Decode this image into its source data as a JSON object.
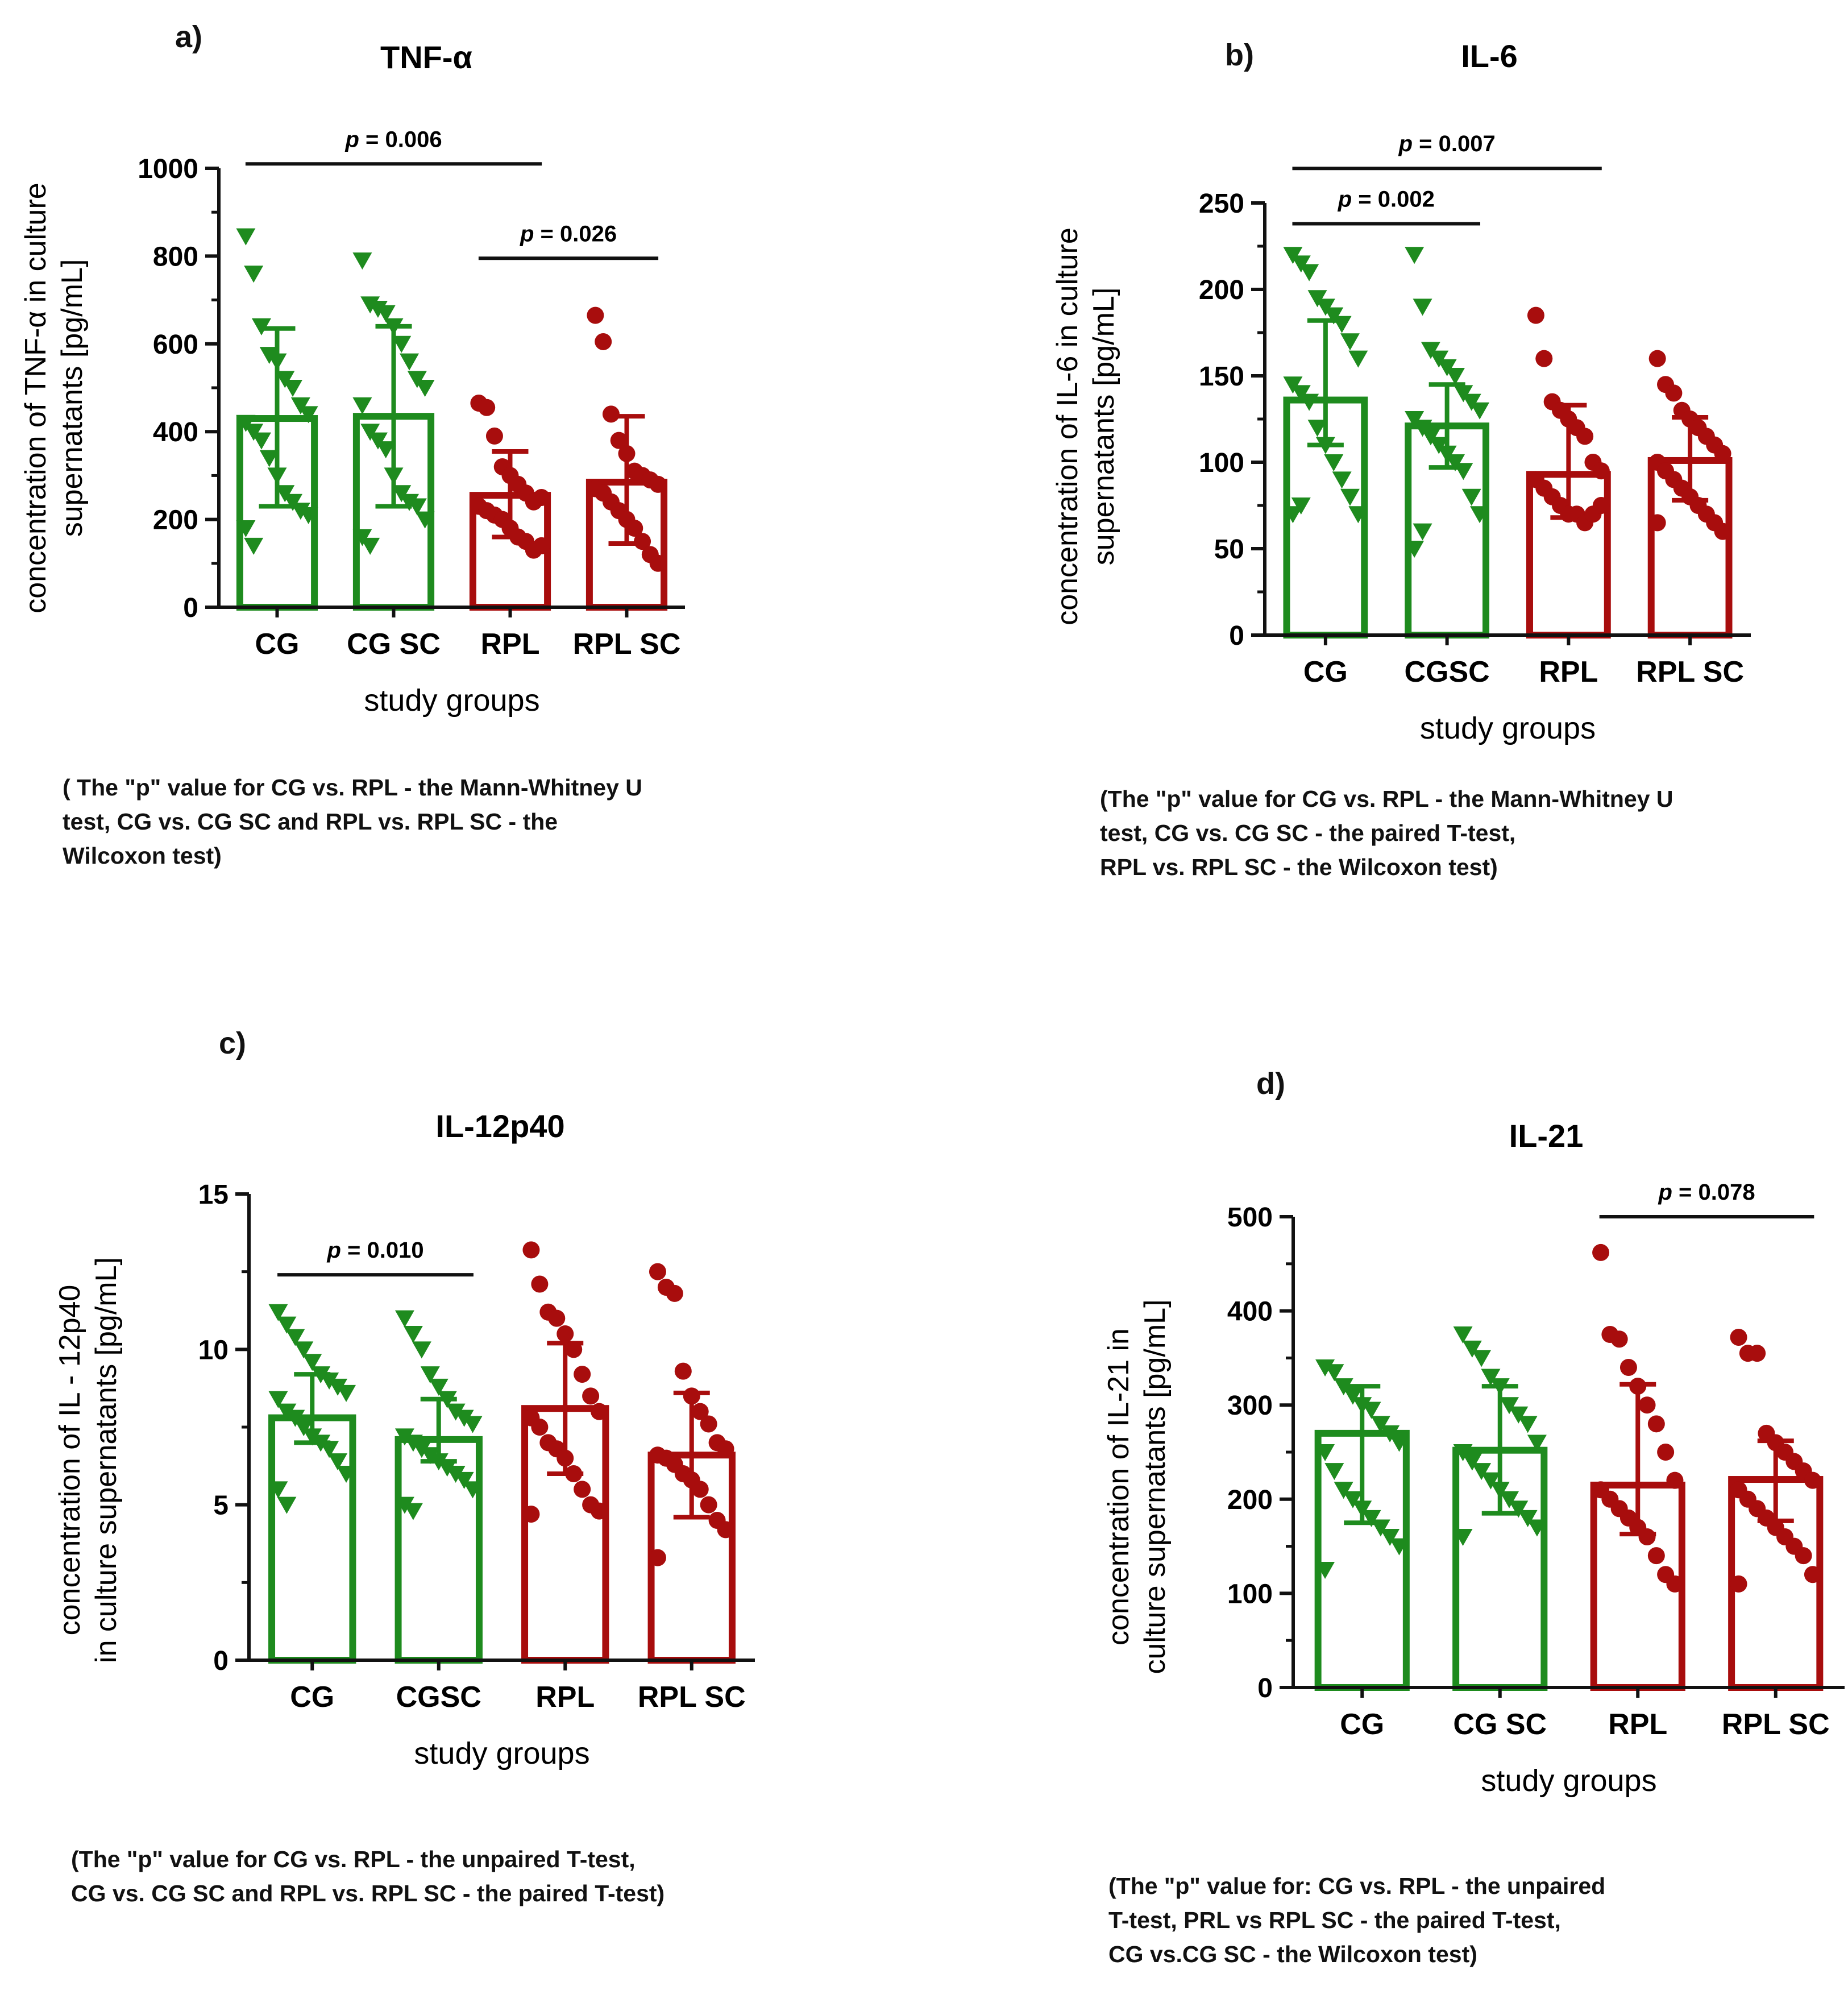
{
  "colors": {
    "cg": "#1e8b1e",
    "rpl": "#a80d0d",
    "axis": "#111111"
  },
  "chart_data": [
    {
      "type": "bar",
      "panel_label": "a)",
      "title": "TNF-α",
      "ylabel_lines": [
        "concentration of TNF-α in culture",
        "supernatants [pg/mL]"
      ],
      "xlabel": "study groups",
      "ylim": [
        0,
        1000
      ],
      "yticks": [
        0,
        200,
        400,
        600,
        800,
        1000
      ],
      "ytick_labels": [
        "0",
        "200",
        "400",
        "600",
        "800",
        "1000"
      ],
      "categories": [
        "CG",
        "CG SC",
        "RPL",
        "RPL SC"
      ],
      "series": [
        {
          "mean": 430,
          "sd_low": 230,
          "sd_high": 635,
          "points": [
            845,
            760,
            640,
            575,
            560,
            520,
            500,
            460,
            440,
            420,
            400,
            380,
            340,
            300,
            260,
            240,
            220,
            210,
            180,
            140
          ]
        },
        {
          "mean": 435,
          "sd_low": 230,
          "sd_high": 640,
          "points": [
            790,
            690,
            680,
            670,
            640,
            600,
            560,
            520,
            500,
            460,
            400,
            380,
            360,
            300,
            260,
            240,
            230,
            200,
            160,
            140
          ]
        },
        {
          "mean": 255,
          "sd_low": 160,
          "sd_high": 355,
          "points": [
            465,
            455,
            390,
            320,
            300,
            280,
            260,
            240,
            250,
            230,
            220,
            210,
            200,
            180,
            160,
            150,
            130,
            140
          ]
        },
        {
          "mean": 285,
          "sd_low": 145,
          "sd_high": 435,
          "points": [
            665,
            605,
            440,
            380,
            350,
            310,
            300,
            290,
            280,
            270,
            260,
            240,
            220,
            200,
            180,
            150,
            120,
            100
          ]
        }
      ],
      "comparisons": [
        {
          "from": 0,
          "to": 2,
          "y": 1010,
          "label": "p = 0.006"
        },
        {
          "from": 2,
          "to": 3,
          "y": 795,
          "label": "p = 0.026"
        }
      ],
      "note_lines": [
        "( The \"p\" value for CG vs. RPL - the Mann-Whitney U",
        "test,  CG vs. CG SC and RPL vs. RPL SC - the",
        "Wilcoxon test)"
      ]
    },
    {
      "type": "bar",
      "panel_label": "b)",
      "title": "IL-6",
      "ylabel_lines": [
        "concentration of IL-6 in culture",
        "supernatants [pg/mL]"
      ],
      "xlabel": "study groups",
      "ylim": [
        0,
        250
      ],
      "yticks": [
        0,
        50,
        100,
        150,
        200,
        250
      ],
      "ytick_labels": [
        "0",
        "50",
        "100",
        "150",
        "200",
        "250"
      ],
      "categories": [
        "CG",
        "CGSC",
        "RPL",
        "RPL SC"
      ],
      "series": [
        {
          "mean": 136,
          "sd_low": 110,
          "sd_high": 182,
          "points": [
            220,
            215,
            210,
            195,
            190,
            185,
            180,
            170,
            160,
            145,
            140,
            135,
            120,
            110,
            100,
            90,
            80,
            70,
            70,
            75
          ]
        },
        {
          "mean": 121,
          "sd_low": 97,
          "sd_high": 145,
          "points": [
            220,
            190,
            165,
            160,
            155,
            150,
            140,
            135,
            130,
            125,
            120,
            115,
            110,
            105,
            100,
            95,
            80,
            70,
            50,
            60
          ]
        },
        {
          "mean": 93,
          "sd_low": 68,
          "sd_high": 133,
          "points": [
            185,
            160,
            135,
            130,
            125,
            120,
            115,
            100,
            95,
            90,
            85,
            80,
            75,
            70,
            70,
            65,
            70,
            75
          ]
        },
        {
          "mean": 101,
          "sd_low": 78,
          "sd_high": 126,
          "points": [
            160,
            145,
            140,
            130,
            125,
            120,
            115,
            110,
            105,
            100,
            95,
            90,
            85,
            80,
            75,
            70,
            65,
            60,
            65
          ]
        }
      ],
      "comparisons": [
        {
          "from": 0,
          "to": 2,
          "y": 270,
          "label": "p = 0.007"
        },
        {
          "from": 0,
          "to": 1,
          "y": 238,
          "label": "p = 0.002"
        }
      ],
      "note_lines": [
        "(The \"p\" value for CG vs. RPL - the Mann-Whitney U",
        "test, CG vs. CG SC - the paired T-test,",
        "RPL vs. RPL SC - the Wilcoxon test)"
      ]
    },
    {
      "type": "bar",
      "panel_label": "c)",
      "title": "IL-12p40",
      "ylabel_lines": [
        "concentration of IL - 12p40",
        "in culture supernatants [pg/mL]"
      ],
      "xlabel": "study groups",
      "ylim": [
        0,
        15
      ],
      "yticks": [
        0,
        5,
        10,
        15
      ],
      "ytick_labels": [
        "0",
        "5",
        "10",
        "15"
      ],
      "categories": [
        "CG",
        "CGSC",
        "RPL",
        "RPL SC"
      ],
      "series": [
        {
          "mean": 7.8,
          "sd_low": 7.0,
          "sd_high": 9.2,
          "points": [
            11.2,
            10.8,
            10.4,
            10.0,
            9.6,
            9.2,
            9.0,
            8.8,
            8.6,
            8.4,
            8.0,
            7.8,
            7.5,
            7.2,
            7.0,
            6.8,
            6.4,
            6.0,
            5.5,
            5.0
          ]
        },
        {
          "mean": 7.1,
          "sd_low": 6.4,
          "sd_high": 8.4,
          "points": [
            11.0,
            10.5,
            10.0,
            9.2,
            8.8,
            8.4,
            8.0,
            7.8,
            7.6,
            7.2,
            7.0,
            6.8,
            6.6,
            6.4,
            6.2,
            6.0,
            5.8,
            5.5,
            5.0,
            4.8
          ]
        },
        {
          "mean": 8.1,
          "sd_low": 6.0,
          "sd_high": 10.2,
          "points": [
            13.2,
            12.1,
            11.2,
            11.0,
            10.5,
            10.0,
            9.2,
            8.5,
            8.0,
            7.8,
            7.5,
            7.0,
            6.8,
            6.5,
            6.0,
            5.5,
            5.0,
            4.8,
            4.7
          ]
        },
        {
          "mean": 6.6,
          "sd_low": 4.6,
          "sd_high": 8.6,
          "points": [
            12.5,
            12.0,
            11.8,
            9.3,
            8.5,
            8.0,
            7.6,
            7.0,
            6.8,
            6.6,
            6.5,
            6.3,
            6.0,
            5.8,
            5.5,
            5.0,
            4.5,
            4.2,
            3.3
          ]
        }
      ],
      "comparisons": [
        {
          "from": 0,
          "to": 1,
          "y": 12.4,
          "label": "p = 0.010"
        }
      ],
      "note_lines": [
        "(The \"p\" value for CG vs. RPL - the unpaired T-test,",
        " CG vs. CG SC and RPL vs. RPL SC - the paired T-test)"
      ]
    },
    {
      "type": "bar",
      "panel_label": "d)",
      "title": "IL-21",
      "ylabel_lines": [
        "concentration of IL-21 in",
        "culture supernatants [pg/mL]"
      ],
      "xlabel": "study groups",
      "ylim": [
        0,
        500
      ],
      "yticks": [
        0,
        100,
        200,
        300,
        400,
        500
      ],
      "ytick_labels": [
        "0",
        "100",
        "200",
        "300",
        "400",
        "500"
      ],
      "categories": [
        "CG",
        "CG SC",
        "RPL",
        "RPL SC"
      ],
      "series": [
        {
          "mean": 270,
          "sd_low": 175,
          "sd_high": 320,
          "points": [
            340,
            335,
            320,
            310,
            300,
            295,
            280,
            270,
            260,
            250,
            230,
            210,
            200,
            190,
            180,
            170,
            160,
            150,
            125
          ]
        },
        {
          "mean": 252,
          "sd_low": 185,
          "sd_high": 320,
          "points": [
            375,
            360,
            350,
            330,
            320,
            300,
            290,
            280,
            260,
            250,
            240,
            230,
            220,
            210,
            200,
            190,
            180,
            170,
            160
          ]
        },
        {
          "mean": 215,
          "sd_low": 163,
          "sd_high": 322,
          "points": [
            462,
            375,
            370,
            340,
            320,
            300,
            280,
            250,
            220,
            210,
            200,
            190,
            180,
            170,
            160,
            140,
            120,
            110
          ]
        },
        {
          "mean": 221,
          "sd_low": 177,
          "sd_high": 262,
          "points": [
            372,
            355,
            355,
            270,
            260,
            250,
            240,
            230,
            220,
            210,
            200,
            190,
            180,
            170,
            160,
            150,
            140,
            120,
            110
          ]
        }
      ],
      "comparisons": [
        {
          "from": 2,
          "to": 3,
          "y": 500,
          "label": "p = 0.078"
        }
      ],
      "note_lines": [
        "(The \"p\" value for: CG vs. RPL - the unpaired",
        "T-test, PRL vs RPL SC  - the paired T-test,",
        "CG vs.CG SC - the Wilcoxon test)"
      ]
    }
  ]
}
